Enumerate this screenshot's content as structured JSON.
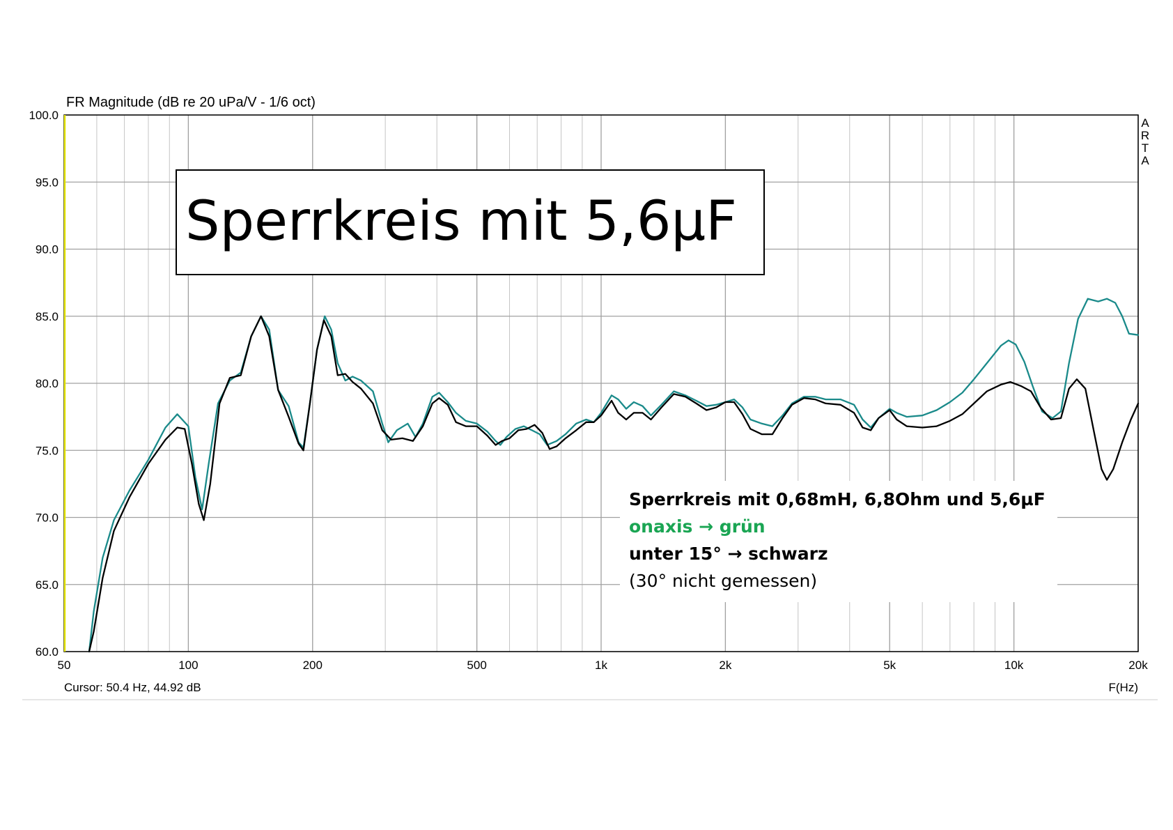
{
  "chart_data": {
    "type": "line",
    "header": "FR Magnitude (dB re 20 uPa/V - 1/6 oct)",
    "title": "Sperrkreis mit 5,6µF",
    "brand_letters": [
      "A",
      "R",
      "T",
      "A"
    ],
    "cursor_readout": "Cursor: 50.4 Hz, 44.92 dB",
    "xlabel": "F(Hz)",
    "x_scale": "log",
    "xlim": [
      50,
      20000
    ],
    "ylim": [
      60,
      100
    ],
    "grid": true,
    "x_ticks": [
      {
        "value": 50,
        "label": "50"
      },
      {
        "value": 100,
        "label": "100"
      },
      {
        "value": 200,
        "label": "200"
      },
      {
        "value": 500,
        "label": "500"
      },
      {
        "value": 1000,
        "label": "1k"
      },
      {
        "value": 2000,
        "label": "2k"
      },
      {
        "value": 5000,
        "label": "5k"
      },
      {
        "value": 10000,
        "label": "10k"
      },
      {
        "value": 20000,
        "label": "20k"
      }
    ],
    "y_ticks": [
      {
        "value": 100,
        "label": "100.0"
      },
      {
        "value": 95,
        "label": "95.0"
      },
      {
        "value": 90,
        "label": "90.0"
      },
      {
        "value": 85,
        "label": "85.0"
      },
      {
        "value": 80,
        "label": "80.0"
      },
      {
        "value": 75,
        "label": "75.0"
      },
      {
        "value": 70,
        "label": "70.0"
      },
      {
        "value": 65,
        "label": "65.0"
      },
      {
        "value": 60,
        "label": "60.0"
      }
    ],
    "legend": {
      "lines": [
        {
          "text": "Sperrkreis mit 0,68mH, 6,8Ohm und 5,6µF",
          "color": "#000000",
          "bold": true
        },
        {
          "text": "onaxis → grün",
          "color": "#1aa553",
          "bold": true
        },
        {
          "text": "unter 15° → schwarz",
          "color": "#000000",
          "bold": true
        },
        {
          "text": "(30° nicht gemessen)",
          "color": "#000000",
          "bold": false
        }
      ]
    },
    "series": [
      {
        "color": "#1a8a8a",
        "points": [
          [
            57.5,
            60
          ],
          [
            59,
            63
          ],
          [
            62,
            67
          ],
          [
            66,
            69.8
          ],
          [
            72,
            72
          ],
          [
            80,
            74.3
          ],
          [
            88,
            76.7
          ],
          [
            94,
            77.7
          ],
          [
            100,
            76.8
          ],
          [
            104,
            73
          ],
          [
            108,
            70.6
          ],
          [
            112,
            74
          ],
          [
            118,
            78.5
          ],
          [
            126,
            80.2
          ],
          [
            134,
            80.8
          ],
          [
            142,
            83.5
          ],
          [
            150,
            85
          ],
          [
            157,
            84
          ],
          [
            165,
            79.5
          ],
          [
            175,
            78.3
          ],
          [
            185,
            75.6
          ],
          [
            190,
            75.2
          ],
          [
            197,
            78.5
          ],
          [
            205,
            82.5
          ],
          [
            214,
            85
          ],
          [
            222,
            84
          ],
          [
            230,
            81.5
          ],
          [
            240,
            80.2
          ],
          [
            250,
            80.5
          ],
          [
            262,
            80.2
          ],
          [
            280,
            79.4
          ],
          [
            295,
            77
          ],
          [
            305,
            75.6
          ],
          [
            320,
            76.5
          ],
          [
            340,
            77
          ],
          [
            355,
            76
          ],
          [
            370,
            77
          ],
          [
            390,
            79
          ],
          [
            405,
            79.3
          ],
          [
            425,
            78.6
          ],
          [
            445,
            77.8
          ],
          [
            470,
            77.2
          ],
          [
            500,
            77
          ],
          [
            530,
            76.4
          ],
          [
            555,
            75.7
          ],
          [
            570,
            75.4
          ],
          [
            590,
            76
          ],
          [
            620,
            76.6
          ],
          [
            650,
            76.8
          ],
          [
            680,
            76.5
          ],
          [
            710,
            76.2
          ],
          [
            740,
            75.4
          ],
          [
            780,
            75.7
          ],
          [
            820,
            76.2
          ],
          [
            870,
            77
          ],
          [
            920,
            77.3
          ],
          [
            960,
            77.1
          ],
          [
            1000,
            77.8
          ],
          [
            1060,
            79.1
          ],
          [
            1100,
            78.8
          ],
          [
            1150,
            78.1
          ],
          [
            1200,
            78.6
          ],
          [
            1260,
            78.3
          ],
          [
            1320,
            77.6
          ],
          [
            1400,
            78.4
          ],
          [
            1500,
            79.4
          ],
          [
            1600,
            79.1
          ],
          [
            1700,
            78.7
          ],
          [
            1800,
            78.3
          ],
          [
            1900,
            78.4
          ],
          [
            2000,
            78.6
          ],
          [
            2100,
            78.8
          ],
          [
            2200,
            78.2
          ],
          [
            2300,
            77.3
          ],
          [
            2450,
            77
          ],
          [
            2600,
            76.8
          ],
          [
            2750,
            77.6
          ],
          [
            2900,
            78.5
          ],
          [
            3100,
            79
          ],
          [
            3300,
            79
          ],
          [
            3500,
            78.8
          ],
          [
            3800,
            78.8
          ],
          [
            4100,
            78.4
          ],
          [
            4300,
            77.3
          ],
          [
            4500,
            76.7
          ],
          [
            4700,
            77.4
          ],
          [
            5000,
            78.1
          ],
          [
            5200,
            77.8
          ],
          [
            5500,
            77.5
          ],
          [
            6000,
            77.6
          ],
          [
            6500,
            78
          ],
          [
            7000,
            78.6
          ],
          [
            7500,
            79.3
          ],
          [
            8000,
            80.3
          ],
          [
            8600,
            81.5
          ],
          [
            9300,
            82.8
          ],
          [
            9700,
            83.2
          ],
          [
            10100,
            82.9
          ],
          [
            10600,
            81.6
          ],
          [
            11100,
            79.8
          ],
          [
            11700,
            77.9
          ],
          [
            12400,
            77.4
          ],
          [
            13000,
            77.9
          ],
          [
            13600,
            81.5
          ],
          [
            14300,
            84.8
          ],
          [
            15100,
            86.3
          ],
          [
            16000,
            86.1
          ],
          [
            16800,
            86.3
          ],
          [
            17600,
            86
          ],
          [
            18300,
            85
          ],
          [
            19000,
            83.7
          ],
          [
            20000,
            83.6
          ]
        ]
      },
      {
        "color": "#000000",
        "points": [
          [
            57.5,
            60
          ],
          [
            59,
            61.5
          ],
          [
            62,
            65.5
          ],
          [
            66,
            69
          ],
          [
            72,
            71.5
          ],
          [
            80,
            74
          ],
          [
            88,
            75.8
          ],
          [
            94,
            76.7
          ],
          [
            98,
            76.6
          ],
          [
            102,
            74
          ],
          [
            106,
            71
          ],
          [
            109,
            69.8
          ],
          [
            113,
            72.5
          ],
          [
            119,
            78.5
          ],
          [
            126,
            80.4
          ],
          [
            134,
            80.6
          ],
          [
            142,
            83.5
          ],
          [
            150,
            85
          ],
          [
            157,
            83.5
          ],
          [
            165,
            79.5
          ],
          [
            175,
            77.5
          ],
          [
            185,
            75.5
          ],
          [
            190,
            75
          ],
          [
            197,
            78.5
          ],
          [
            205,
            82.5
          ],
          [
            213,
            84.7
          ],
          [
            222,
            83.5
          ],
          [
            230,
            80.6
          ],
          [
            240,
            80.7
          ],
          [
            250,
            80.1
          ],
          [
            262,
            79.6
          ],
          [
            280,
            78.5
          ],
          [
            295,
            76.5
          ],
          [
            310,
            75.8
          ],
          [
            330,
            75.9
          ],
          [
            350,
            75.7
          ],
          [
            370,
            76.8
          ],
          [
            390,
            78.5
          ],
          [
            405,
            78.9
          ],
          [
            425,
            78.4
          ],
          [
            445,
            77.1
          ],
          [
            470,
            76.8
          ],
          [
            500,
            76.8
          ],
          [
            530,
            76.1
          ],
          [
            555,
            75.4
          ],
          [
            575,
            75.7
          ],
          [
            600,
            75.9
          ],
          [
            630,
            76.5
          ],
          [
            660,
            76.6
          ],
          [
            690,
            76.9
          ],
          [
            720,
            76.3
          ],
          [
            750,
            75.1
          ],
          [
            780,
            75.3
          ],
          [
            820,
            75.9
          ],
          [
            870,
            76.5
          ],
          [
            920,
            77.1
          ],
          [
            960,
            77.1
          ],
          [
            1000,
            77.6
          ],
          [
            1060,
            78.7
          ],
          [
            1100,
            77.8
          ],
          [
            1150,
            77.3
          ],
          [
            1200,
            77.8
          ],
          [
            1260,
            77.8
          ],
          [
            1320,
            77.3
          ],
          [
            1400,
            78.2
          ],
          [
            1500,
            79.2
          ],
          [
            1600,
            79
          ],
          [
            1700,
            78.5
          ],
          [
            1800,
            78
          ],
          [
            1900,
            78.2
          ],
          [
            2000,
            78.6
          ],
          [
            2100,
            78.6
          ],
          [
            2200,
            77.7
          ],
          [
            2300,
            76.6
          ],
          [
            2450,
            76.2
          ],
          [
            2600,
            76.2
          ],
          [
            2750,
            77.4
          ],
          [
            2900,
            78.4
          ],
          [
            3100,
            78.9
          ],
          [
            3300,
            78.8
          ],
          [
            3500,
            78.5
          ],
          [
            3800,
            78.4
          ],
          [
            4100,
            77.8
          ],
          [
            4300,
            76.7
          ],
          [
            4500,
            76.5
          ],
          [
            4700,
            77.4
          ],
          [
            5000,
            78
          ],
          [
            5200,
            77.3
          ],
          [
            5500,
            76.8
          ],
          [
            6000,
            76.7
          ],
          [
            6500,
            76.8
          ],
          [
            7000,
            77.2
          ],
          [
            7500,
            77.7
          ],
          [
            8000,
            78.5
          ],
          [
            8600,
            79.4
          ],
          [
            9300,
            79.9
          ],
          [
            9800,
            80.1
          ],
          [
            10400,
            79.8
          ],
          [
            11000,
            79.4
          ],
          [
            11600,
            78.2
          ],
          [
            12300,
            77.3
          ],
          [
            13000,
            77.4
          ],
          [
            13600,
            79.6
          ],
          [
            14200,
            80.3
          ],
          [
            14900,
            79.6
          ],
          [
            15600,
            76.5
          ],
          [
            16300,
            73.6
          ],
          [
            16800,
            72.8
          ],
          [
            17400,
            73.6
          ],
          [
            18300,
            75.6
          ],
          [
            19200,
            77.3
          ],
          [
            20000,
            78.5
          ]
        ]
      }
    ]
  }
}
